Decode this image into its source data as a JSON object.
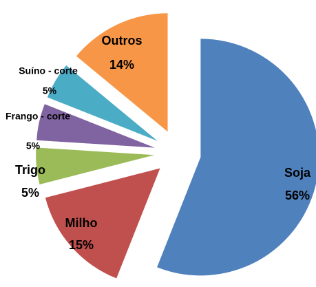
{
  "chart_data": {
    "type": "pie",
    "categories": [
      "Soja",
      "Milho",
      "Trigo",
      "Frango - corte",
      "Suíno - corte",
      "Outros"
    ],
    "values": [
      56,
      15,
      5,
      5,
      5,
      14
    ],
    "value_labels": [
      "56%",
      "15%",
      "5%",
      "5%",
      "5%",
      "14%"
    ],
    "colors": [
      "#4f81bd",
      "#c0504d",
      "#9bbb59",
      "#8064a2",
      "#4bacc6",
      "#f79646"
    ]
  }
}
